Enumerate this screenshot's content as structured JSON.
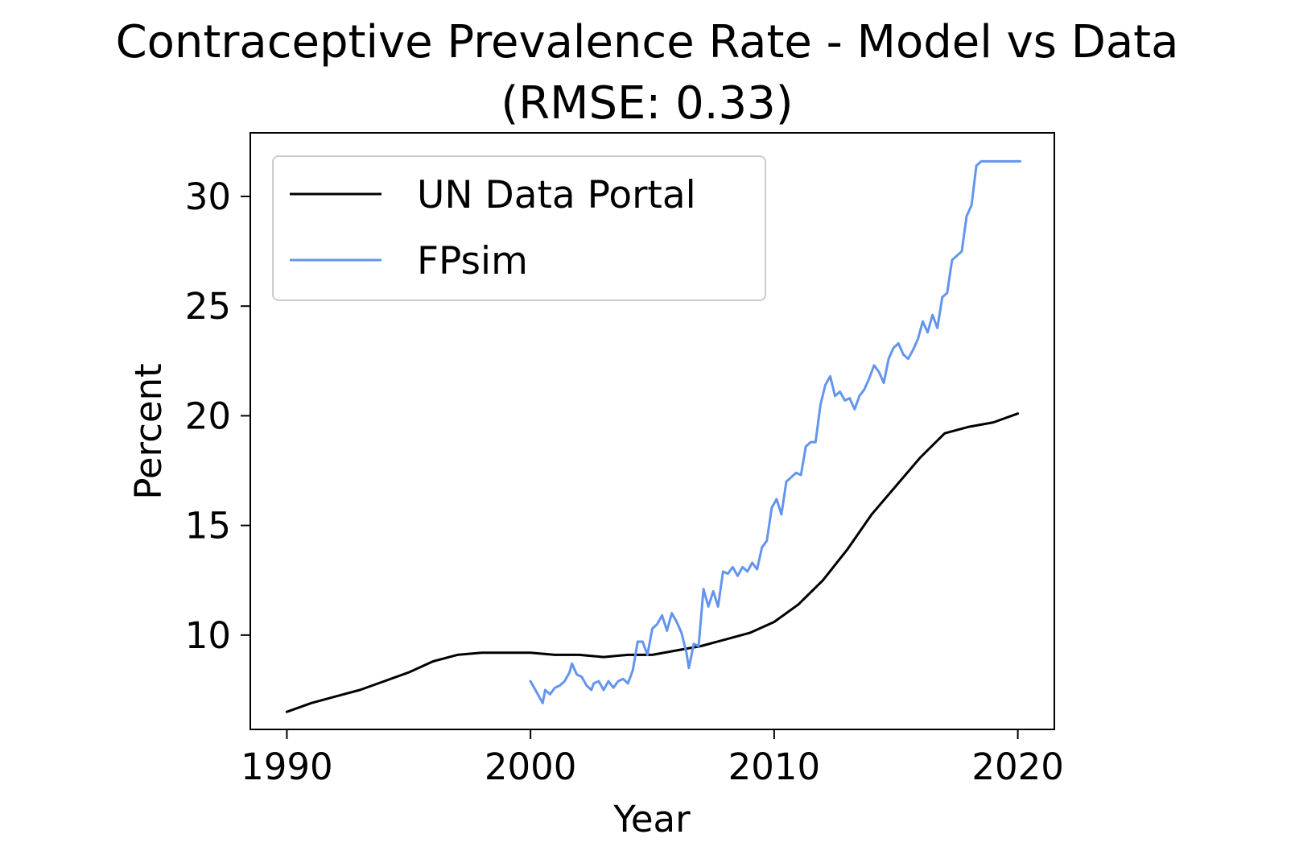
{
  "chart_data": {
    "type": "line",
    "title": "Contraceptive Prevalence Rate - Model vs Data",
    "subtitle": "(RMSE: 0.33)",
    "xlabel": "Year",
    "ylabel": "Percent",
    "xlim": [
      1988.5,
      2021.5
    ],
    "ylim": [
      5.7,
      32.9
    ],
    "xticks": [
      1990,
      2000,
      2010,
      2020
    ],
    "yticks": [
      10,
      15,
      20,
      25,
      30
    ],
    "grid": false,
    "legend_position": "upper-left",
    "series": [
      {
        "name": "UN Data Portal",
        "color": "#000000",
        "x": [
          1990,
          1991,
          1992,
          1993,
          1994,
          1995,
          1996,
          1997,
          1998,
          1999,
          2000,
          2001,
          2002,
          2003,
          2004,
          2005,
          2006,
          2007,
          2008,
          2009,
          2010,
          2011,
          2012,
          2013,
          2014,
          2015,
          2016,
          2017,
          2018,
          2019,
          2020
        ],
        "y": [
          6.5,
          6.9,
          7.2,
          7.5,
          7.9,
          8.3,
          8.8,
          9.1,
          9.2,
          9.2,
          9.2,
          9.1,
          9.1,
          9.0,
          9.1,
          9.1,
          9.3,
          9.5,
          9.8,
          10.1,
          10.6,
          11.4,
          12.5,
          13.9,
          15.5,
          16.8,
          18.1,
          19.2,
          19.5,
          19.7,
          20.1
        ]
      },
      {
        "name": "FPsim",
        "color": "#6495ED",
        "x": [
          2000.0,
          2000.2,
          2000.3,
          2000.5,
          2000.6,
          2000.8,
          2001.0,
          2001.2,
          2001.4,
          2001.6,
          2001.7,
          2001.9,
          2002.1,
          2002.3,
          2002.5,
          2002.6,
          2002.8,
          2003.0,
          2003.2,
          2003.4,
          2003.6,
          2003.8,
          2004.0,
          2004.2,
          2004.4,
          2004.6,
          2004.8,
          2005.0,
          2005.2,
          2005.4,
          2005.6,
          2005.8,
          2006.0,
          2006.2,
          2006.4,
          2006.5,
          2006.7,
          2006.9,
          2007.1,
          2007.3,
          2007.5,
          2007.7,
          2007.9,
          2008.1,
          2008.3,
          2008.5,
          2008.7,
          2008.9,
          2009.1,
          2009.3,
          2009.5,
          2009.7,
          2009.9,
          2010.1,
          2010.3,
          2010.5,
          2010.7,
          2010.9,
          2011.1,
          2011.3,
          2011.5,
          2011.7,
          2011.9,
          2012.1,
          2012.3,
          2012.5,
          2012.7,
          2012.9,
          2013.1,
          2013.3,
          2013.5,
          2013.7,
          2013.9,
          2014.1,
          2014.3,
          2014.5,
          2014.7,
          2014.9,
          2015.1,
          2015.3,
          2015.5,
          2015.7,
          2015.9,
          2016.1,
          2016.3,
          2016.5,
          2016.7,
          2016.9,
          2017.1,
          2017.3,
          2017.5,
          2017.7,
          2017.9,
          2018.1,
          2018.3,
          2018.5,
          2018.7,
          2018.9,
          2019.1,
          2019.3,
          2019.5,
          2019.7,
          2019.9,
          2020.1
        ],
        "y": [
          7.9,
          7.5,
          7.3,
          6.9,
          7.5,
          7.3,
          7.6,
          7.7,
          7.9,
          8.3,
          8.7,
          8.2,
          8.1,
          7.7,
          7.5,
          7.8,
          7.9,
          7.5,
          7.9,
          7.6,
          7.9,
          8.0,
          7.8,
          8.4,
          9.7,
          9.7,
          9.1,
          10.3,
          10.5,
          10.9,
          10.2,
          11.0,
          10.6,
          10.1,
          9.2,
          8.5,
          9.6,
          9.5,
          12.1,
          11.3,
          12.0,
          11.3,
          12.9,
          12.8,
          13.1,
          12.7,
          13.1,
          12.9,
          13.3,
          13.0,
          14.0,
          14.3,
          15.8,
          16.2,
          15.5,
          17.0,
          17.2,
          17.4,
          17.3,
          18.6,
          18.8,
          18.8,
          20.5,
          21.4,
          21.8,
          20.9,
          21.1,
          20.7,
          20.8,
          20.3,
          20.9,
          21.2,
          21.7,
          22.3,
          22.0,
          21.5,
          22.6,
          23.1,
          23.3,
          22.8,
          22.6,
          23.0,
          23.5,
          24.3,
          23.8,
          24.6,
          24.0,
          25.4,
          25.6,
          27.1,
          27.3,
          27.5,
          29.1,
          29.6,
          31.4,
          31.6,
          31.6,
          31.6,
          31.6,
          31.6,
          31.6,
          31.6,
          31.6,
          31.6
        ]
      }
    ]
  }
}
